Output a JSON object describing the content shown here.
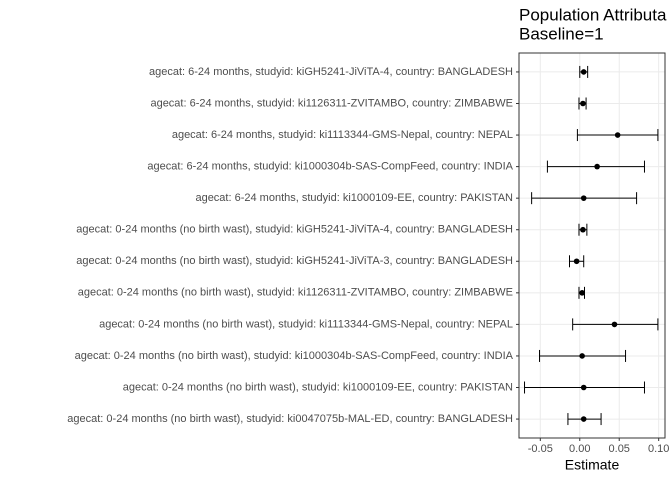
{
  "chart_data": {
    "type": "forest",
    "title": "Population Attributa",
    "subtitle": "Baseline=1",
    "x_label": "Estimate",
    "categories": [
      "agecat: 6-24 months, studyid: kiGH5241-JiViTA-4, country: BANGLADESH",
      "agecat: 6-24 months, studyid: ki1126311-ZVITAMBO, country: ZIMBABWE",
      "agecat: 6-24 months, studyid: ki1113344-GMS-Nepal, country: NEPAL",
      "agecat: 6-24 months, studyid: ki1000304b-SAS-CompFeed, country: INDIA",
      "agecat: 6-24 months, studyid: ki1000109-EE, country: PAKISTAN",
      "agecat: 0-24 months (no birth wast), studyid: kiGH5241-JiViTA-4, country: BANGLADESH",
      "agecat: 0-24 months (no birth wast), studyid: kiGH5241-JiViTA-3, country: BANGLADESH",
      "agecat: 0-24 months (no birth wast), studyid: ki1126311-ZVITAMBO, country: ZIMBABWE",
      "agecat: 0-24 months (no birth wast), studyid: ki1113344-GMS-Nepal, country: NEPAL",
      "agecat: 0-24 months (no birth wast), studyid: ki1000304b-SAS-CompFeed, country: INDIA",
      "agecat: 0-24 months (no birth wast), studyid: ki1000109-EE, country: PAKISTAN",
      "agecat: 0-24 months (no birth wast), studyid: ki0047075b-MAL-ED, country: BANGLADESH"
    ],
    "values": [
      0.005,
      0.004,
      0.048,
      0.022,
      0.005,
      0.004,
      -0.004,
      0.003,
      0.044,
      0.003,
      0.005,
      0.005
    ],
    "lower": [
      0.0,
      -0.001,
      -0.003,
      -0.041,
      -0.061,
      -0.001,
      -0.013,
      -0.001,
      -0.009,
      -0.051,
      -0.07,
      -0.015
    ],
    "upper": [
      0.01,
      0.008,
      0.099,
      0.082,
      0.072,
      0.009,
      0.005,
      0.006,
      0.099,
      0.058,
      0.082,
      0.027
    ],
    "color": "#000000",
    "xlim": [
      -0.077,
      0.108
    ],
    "xticks": [
      {
        "value": -0.05,
        "label": "-0.05"
      },
      {
        "value": 0,
        "label": "0.00"
      },
      {
        "value": 0.05,
        "label": "0.05"
      },
      {
        "value": 0.1,
        "label": "0.10"
      }
    ],
    "grid": true
  }
}
